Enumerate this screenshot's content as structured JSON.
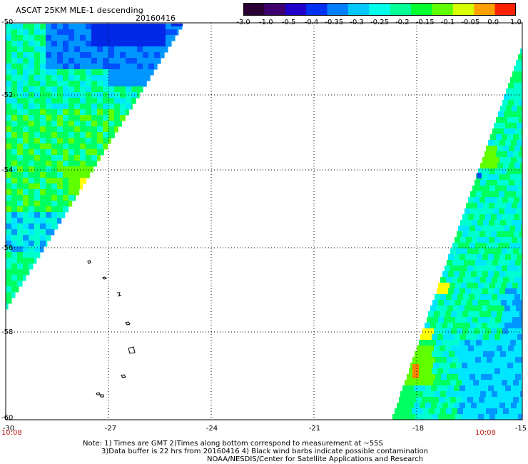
{
  "header": {
    "title": "ASCAT 25KM MLE-1 descending",
    "date": "20160416"
  },
  "colorbar": {
    "labels": [
      "-3.0",
      "-1.0",
      "-0.5",
      "-0.4",
      "-0.35",
      "-0.3",
      "-0.25",
      "-0.2",
      "-0.15",
      "-0.1",
      "-0.05",
      "0.0",
      "1.0"
    ],
    "colors": [
      "#2a0033",
      "#3d006e",
      "#2000c8",
      "#0030f0",
      "#0080ff",
      "#00c8ff",
      "#00ffea",
      "#00ff96",
      "#00ff30",
      "#60ff00",
      "#d8ff00",
      "#ffa000",
      "#ff2000"
    ]
  },
  "axes": {
    "y_labels": [
      "-50",
      "-52",
      "-54",
      "-56",
      "-58",
      "-60"
    ],
    "x_labels": [
      "-30",
      "-27",
      "-24",
      "-21",
      "-18",
      "-15"
    ]
  },
  "times": {
    "left": "10:08",
    "right": "10:08"
  },
  "notes": [
    "Note: 1) Times are GMT 2)Times along bottom correspond to measurement at ~55S",
    "3)Data buffer is 22 hrs from 20160416 4) Black wind barbs indicate possible contamination",
    "NOAA/NESDIS/Center for Satellite Applications and Research"
  ],
  "palette": {
    "deep_blue": "#0028e6",
    "blue": "#0050ff",
    "light_blue": "#0096ff",
    "cyan": "#00e8ff",
    "aqua": "#00ffd0",
    "green": "#00ff60",
    "lime": "#60ff00",
    "yellow": "#ffff00",
    "orange": "#ff8000"
  }
}
